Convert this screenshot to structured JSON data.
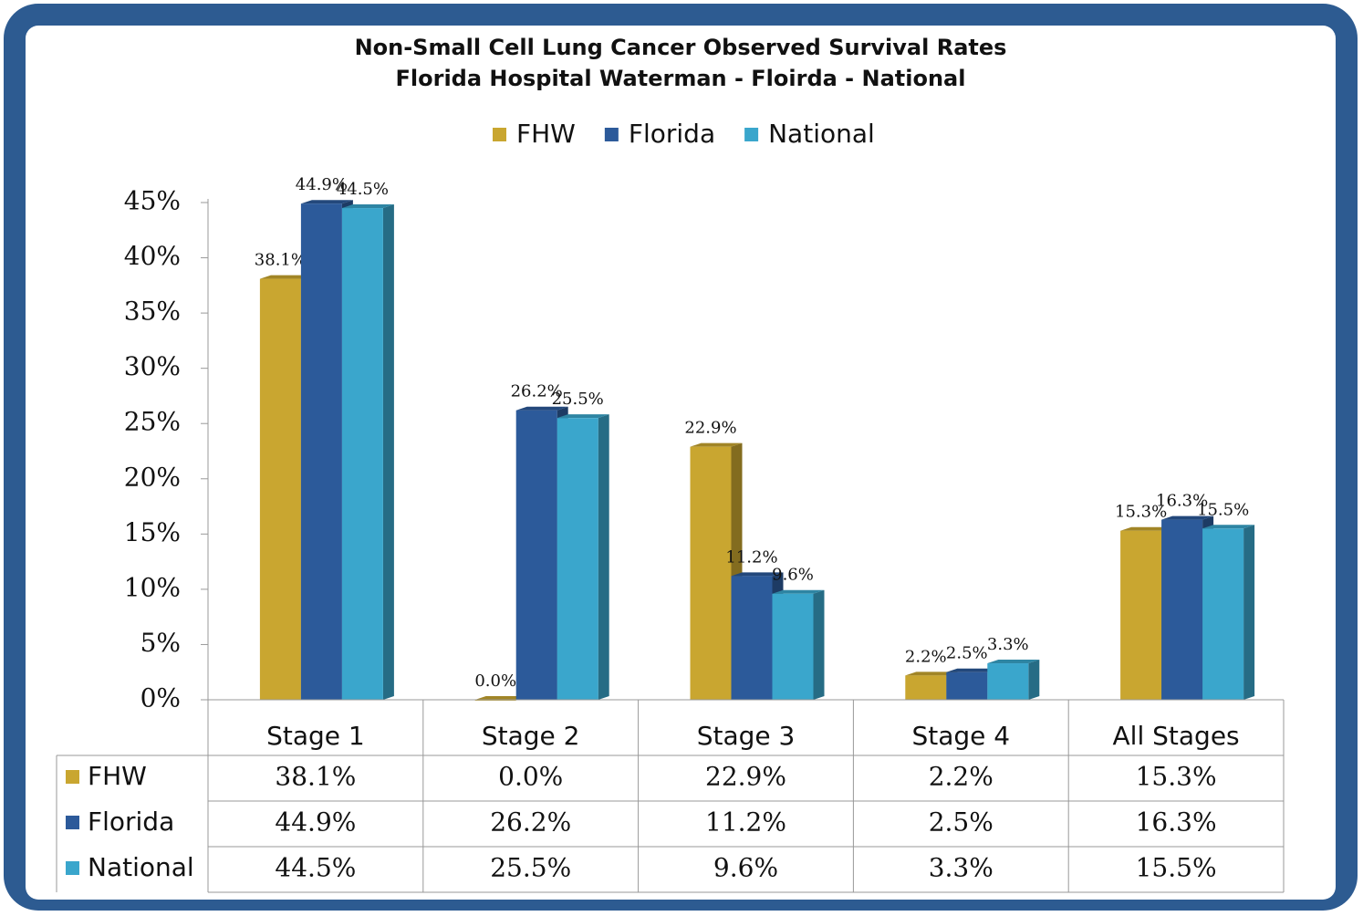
{
  "chart_data": {
    "type": "bar",
    "title": "Non-Small Cell Lung Cancer Observed Survival Rates",
    "subtitle": "Florida Hospital Waterman - Floirda - National",
    "categories": [
      "Stage 1",
      "Stage 2",
      "Stage 3",
      "Stage 4",
      "All Stages"
    ],
    "series": [
      {
        "name": "FHW",
        "color": "#c9a630",
        "values": [
          38.1,
          0.0,
          22.9,
          2.2,
          15.3
        ],
        "value_labels": [
          "38.1%",
          "0.0%",
          "22.9%",
          "2.2%",
          "15.3%"
        ]
      },
      {
        "name": "Florida",
        "color": "#2c5a9a",
        "values": [
          44.9,
          26.2,
          11.2,
          2.5,
          16.3
        ],
        "value_labels": [
          "44.9%",
          "26.2%",
          "11.2%",
          "2.5%",
          "16.3%"
        ]
      },
      {
        "name": "National",
        "color": "#3aa6cc",
        "values": [
          44.5,
          25.5,
          9.6,
          3.3,
          15.5
        ],
        "value_labels": [
          "44.5%",
          "25.5%",
          "9.6%",
          "3.3%",
          "15.5%"
        ]
      }
    ],
    "ylim": [
      0,
      45
    ],
    "yticks": [
      {
        "value": 0,
        "label": "0%"
      },
      {
        "value": 5,
        "label": "5%"
      },
      {
        "value": 10,
        "label": "10%"
      },
      {
        "value": 15,
        "label": "15%"
      },
      {
        "value": 20,
        "label": "20%"
      },
      {
        "value": 25,
        "label": "25%"
      },
      {
        "value": 30,
        "label": "30%"
      },
      {
        "value": 35,
        "label": "35%"
      },
      {
        "value": 40,
        "label": "40%"
      },
      {
        "value": 45,
        "label": "45%"
      }
    ],
    "legend": "top",
    "data_table": true
  }
}
